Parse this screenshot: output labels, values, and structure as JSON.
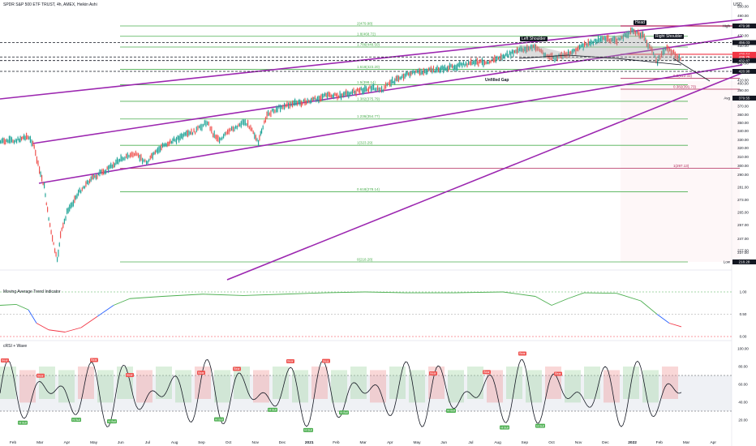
{
  "title": "SPDR S&P 500 ETF TRUST, 4h, AMEX, Heikin Ashi",
  "chart_data": {
    "type": "candlestick",
    "currency": "USD",
    "price_axis_ticks": [
      500,
      490,
      480,
      470,
      450,
      440,
      430,
      410,
      400,
      390,
      380,
      370,
      360,
      350,
      340,
      330,
      320,
      310,
      300,
      290,
      281,
      273,
      265,
      257,
      247,
      237,
      227,
      218
    ],
    "price_axis_badges": [
      {
        "label": "High",
        "value": "479.98",
        "color": "#131722"
      },
      {
        "label": "",
        "value": "456.03",
        "color": "#131722"
      },
      {
        "label": "",
        "value": "439.64",
        "color": "#f23645"
      },
      {
        "label": "",
        "value": "436.75",
        "color": "#f23645"
      },
      {
        "label": "",
        "value": "432.87",
        "color": "#131722"
      },
      {
        "label": "",
        "value": "420.98",
        "color": "#131722"
      },
      {
        "label": "Avg",
        "value": "379.55",
        "color": "#131722"
      },
      {
        "label": "Low",
        "value": "218.28",
        "color": "#131722"
      }
    ],
    "x_axis_labels": [
      "Feb",
      "Mar",
      "Apr",
      "May",
      "Jun",
      "Jul",
      "Aug",
      "Sep",
      "Oct",
      "Nov",
      "Dec",
      "2021",
      "Feb",
      "Mar",
      "Apr",
      "May",
      "Jun",
      "Jul",
      "Aug",
      "Sep",
      "Oct",
      "Nov",
      "Dec",
      "2022",
      "Feb",
      "Mar",
      "Apr"
    ],
    "fib_levels": [
      {
        "label": "2.1465(507.66)",
        "value": 507.66
      },
      {
        "label": "2(479.98)",
        "value": 479.98
      },
      {
        "label": "1.8(468.72)",
        "value": 468.72
      },
      {
        "label": "1.786(448.50)",
        "value": 448.5
      },
      {
        "label": "1.618(423.20)",
        "value": 423.2
      },
      {
        "label": "1.5(398.14)",
        "value": 398.14
      },
      {
        "label": "1.382(375.79)",
        "value": 375.79
      },
      {
        "label": "1.236(354.77)",
        "value": 354.77
      },
      {
        "label": "1(323.29)",
        "value": 323.29
      },
      {
        "label": "0.618(278.14)",
        "value": 278.14
      },
      {
        "label": "0(218.28)",
        "value": 218.28
      }
    ],
    "right_fib_labels": [
      "0.382(391.73)",
      "0.5(412.33)",
      "1(297.13)"
    ],
    "annotations": [
      "Head",
      "Left Shoulder",
      "Right Shoulder",
      "Unfilled Gap"
    ],
    "indicators": [
      {
        "name": "Moving Average Trend Indicator",
        "axis_ticks": [
          "1.00",
          "0.50",
          "0.00"
        ]
      },
      {
        "name": "cRSI + Wave",
        "axis_ticks": [
          "100.00",
          "80.00",
          "60.00",
          "40.00",
          "20.00"
        ]
      }
    ],
    "signal_labels": [
      "Bear",
      "Hi Bull",
      "Bull"
    ]
  }
}
